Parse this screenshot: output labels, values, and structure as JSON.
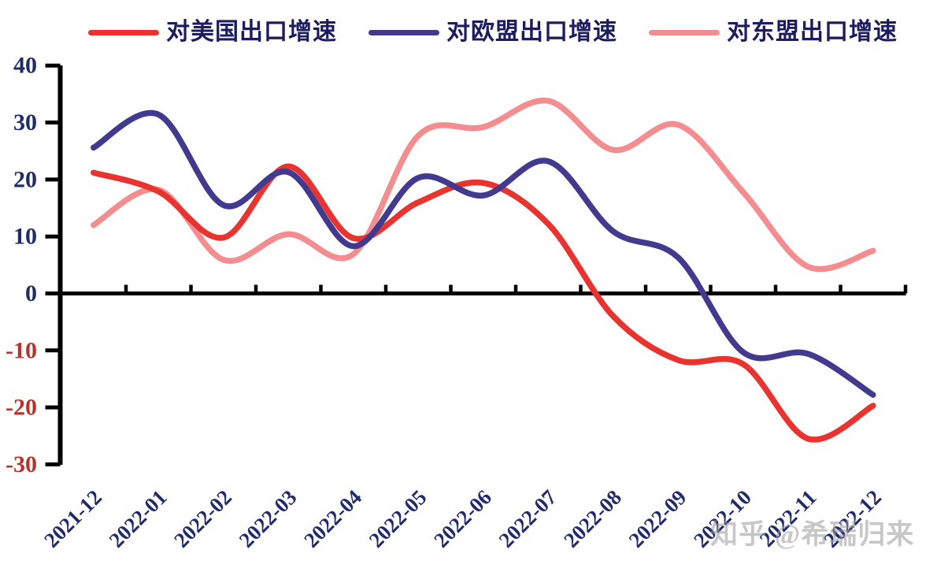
{
  "watermark": "知乎 @希瑞归来",
  "chart_data": {
    "type": "line",
    "smoothing": "spline",
    "title": "",
    "xlabel": "",
    "ylabel": "",
    "grid": false,
    "legend_position": "top",
    "ylim": [
      -30,
      40
    ],
    "yticks": [
      40,
      30,
      20,
      10,
      0,
      -10,
      -20,
      -30
    ],
    "categories": [
      "2021-12",
      "2022-01",
      "2022-02",
      "2022-03",
      "2022-04",
      "2022-05",
      "2022-06",
      "2022-07",
      "2022-08",
      "2022-09",
      "2022-10",
      "2022-11",
      "2022-12"
    ],
    "series": [
      {
        "name": "对美国出口增速",
        "color": "#e8332f",
        "values": [
          21.2,
          17.9,
          9.8,
          22.3,
          9.7,
          16.0,
          19.4,
          12.2,
          -4.0,
          -11.7,
          -12.4,
          -25.5,
          -19.7
        ]
      },
      {
        "name": "对欧盟出口增速",
        "color": "#423a8e",
        "values": [
          25.6,
          31.4,
          15.5,
          21.3,
          8.3,
          20.3,
          17.2,
          23.2,
          10.9,
          6.3,
          -10.3,
          -10.6,
          -17.8
        ]
      },
      {
        "name": "对东盟出口增速",
        "color": "#f48d8f",
        "values": [
          12.0,
          18.2,
          5.9,
          10.4,
          6.9,
          27.7,
          29.2,
          33.8,
          25.2,
          29.6,
          17.8,
          4.7,
          7.5
        ]
      }
    ],
    "axis_label_colors": {
      "positive": "#1f2b6b",
      "negative": "#c03028",
      "xlabels": "#1f2b6b",
      "axis": "#000000"
    }
  }
}
